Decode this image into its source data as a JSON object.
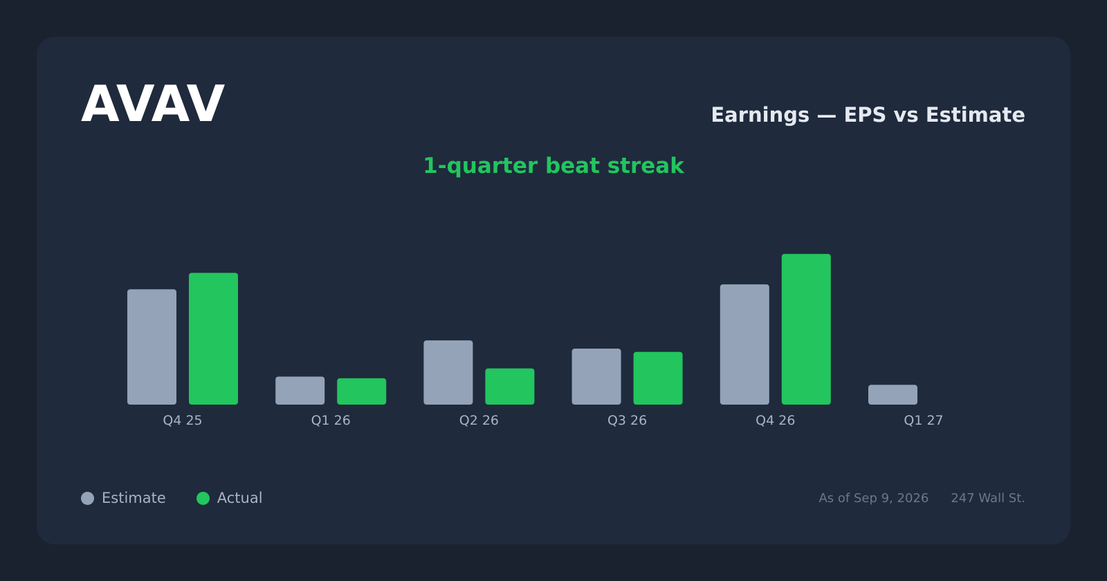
{
  "header": {
    "ticker": "AVAV",
    "title": "Earnings — EPS vs Estimate",
    "streak": "1-quarter beat streak"
  },
  "legend": [
    {
      "label": "Estimate",
      "color": "#94a3b8"
    },
    {
      "label": "Actual",
      "color": "#22c55e"
    }
  ],
  "footer": {
    "as_of": "As of Sep 9, 2026",
    "source": "247 Wall St."
  },
  "chart_data": {
    "type": "bar",
    "categories": [
      "Q4 25",
      "Q1 26",
      "Q2 26",
      "Q3 26",
      "Q4 26",
      "Q1 27"
    ],
    "series": [
      {
        "name": "Estimate",
        "color": "#94a3b8",
        "values": [
          1.4,
          0.34,
          0.78,
          0.68,
          1.46,
          0.24
        ]
      },
      {
        "name": "Actual",
        "color": "#22c55e",
        "values": [
          1.6,
          0.32,
          0.44,
          0.64,
          1.83,
          null
        ]
      }
    ],
    "ylim": [
      0,
      2.2
    ],
    "grid": false,
    "legend_position": "bottom-left"
  }
}
